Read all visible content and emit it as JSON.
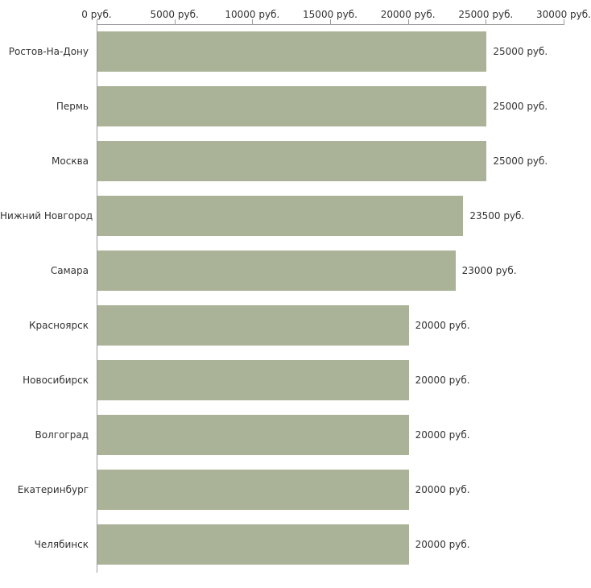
{
  "chart_data": {
    "type": "bar",
    "orientation": "horizontal",
    "title": "",
    "xlabel": "",
    "ylabel": "",
    "xlim": [
      0,
      30000
    ],
    "grid": false,
    "legend": "none",
    "bar_color": "#aab397",
    "axis_color": "#9a9a9a",
    "text_color": "#333333",
    "categories": [
      "Ростов-На-Дону",
      "Пермь",
      "Москва",
      "Нижний Новгород",
      "Самара",
      "Красноярск",
      "Новосибирск",
      "Волгоград",
      "Екатеринбург",
      "Челябинск"
    ],
    "values": [
      25000,
      25000,
      25000,
      23500,
      23000,
      20000,
      20000,
      20000,
      20000,
      20000
    ],
    "value_labels": [
      "25000 руб.",
      "25000 руб.",
      "25000 руб.",
      "23500 руб.",
      "23000 руб.",
      "20000 руб.",
      "20000 руб.",
      "20000 руб.",
      "20000 руб.",
      "20000 руб."
    ],
    "x_ticks": [
      {
        "value": 0,
        "label": "0 руб."
      },
      {
        "value": 5000,
        "label": "5000 руб."
      },
      {
        "value": 10000,
        "label": "10000 руб."
      },
      {
        "value": 15000,
        "label": "15000 руб."
      },
      {
        "value": 20000,
        "label": "20000 руб."
      },
      {
        "value": 25000,
        "label": "25000 руб."
      },
      {
        "value": 30000,
        "label": "30000 руб."
      }
    ]
  }
}
